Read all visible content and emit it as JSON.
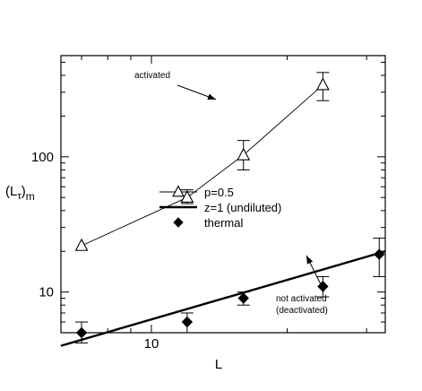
{
  "chart_data": {
    "type": "scatter",
    "xlabel": "L",
    "ylabel_main": "(L",
    "ylabel_sub": "τ",
    "ylabel_close": ")",
    "ylabel_subscript": "m",
    "xscale": "log",
    "yscale": "log",
    "xlim": [
      6.3,
      33
    ],
    "ylim": [
      5,
      560
    ],
    "x_ticks": [
      10
    ],
    "x_tick_labels": [
      "10"
    ],
    "y_ticks": [
      10,
      100
    ],
    "y_tick_labels": [
      "10",
      "100"
    ],
    "grid": false,
    "legend_position": "center",
    "series": [
      {
        "name": "p=0.5",
        "marker": "open-triangle",
        "connect": "thin-line",
        "x": [
          7,
          12,
          16,
          24
        ],
        "y": [
          22,
          50,
          103,
          340
        ],
        "yerr_low": [
          22,
          45,
          80,
          260
        ],
        "yerr_high": [
          22,
          57,
          132,
          420
        ]
      },
      {
        "name": "z=1 (undiluted)",
        "marker": "none",
        "connect": "thick-line",
        "x": [
          6.3,
          33
        ],
        "y": [
          4.0,
          20.0
        ]
      },
      {
        "name": "thermal",
        "marker": "filled-diamond",
        "connect": "none",
        "x": [
          7,
          12,
          16,
          24,
          32
        ],
        "y": [
          5.0,
          6.0,
          9.0,
          11.0,
          19.0
        ],
        "yerr_low": [
          4.2,
          5.0,
          8.0,
          9.2,
          13.0
        ],
        "yerr_high": [
          6.0,
          7.0,
          10.0,
          13.0,
          25.0
        ]
      }
    ],
    "annotations": [
      {
        "text": "activated"
      },
      {
        "text": "not activated"
      },
      {
        "text": "(deactivated)"
      }
    ]
  }
}
